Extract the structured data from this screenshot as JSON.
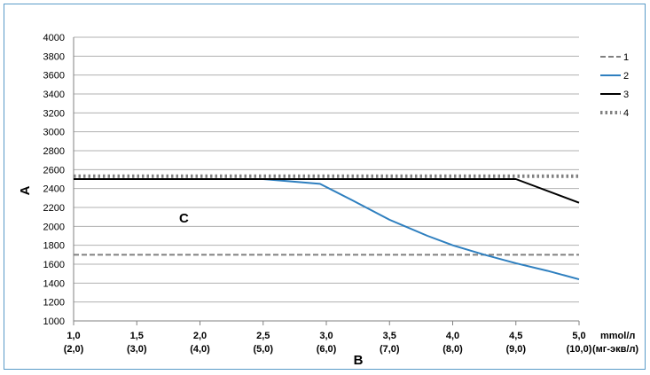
{
  "chart_data": {
    "type": "line",
    "ylabel": "A",
    "xlabel": "B",
    "annotation": "C",
    "x_unit_top": "mmol/л",
    "x_unit_bottom": "(мг-экв/л)",
    "ylim": [
      1000,
      4000
    ],
    "y_ticks": [
      "1000",
      "1200",
      "1400",
      "1600",
      "1800",
      "2000",
      "2200",
      "2400",
      "2600",
      "2800",
      "3000",
      "3200",
      "3400",
      "3600",
      "3800",
      "4000"
    ],
    "xlim": [
      1.0,
      5.0
    ],
    "x_ticks": [
      {
        "value": 1.0,
        "label": "1,0",
        "sub": "(2,0)"
      },
      {
        "value": 1.5,
        "label": "1,5",
        "sub": "(3,0)"
      },
      {
        "value": 2.0,
        "label": "2,0",
        "sub": "(4,0)"
      },
      {
        "value": 2.5,
        "label": "2,5",
        "sub": "(5,0)"
      },
      {
        "value": 3.0,
        "label": "3,0",
        "sub": "(6,0)"
      },
      {
        "value": 3.5,
        "label": "3,5",
        "sub": "(7,0)"
      },
      {
        "value": 4.0,
        "label": "4,0",
        "sub": "(8,0)"
      },
      {
        "value": 4.5,
        "label": "4,5",
        "sub": "(9,0)"
      },
      {
        "value": 5.0,
        "label": "5,0",
        "sub": "(10,0)"
      }
    ],
    "grid": true,
    "legend_position": "right",
    "series": [
      {
        "name": "1",
        "style": "dashed",
        "color": "#808080",
        "x": [
          1.0,
          5.0
        ],
        "y": [
          1700,
          1700
        ]
      },
      {
        "name": "2",
        "style": "solid",
        "color": "#2e7fbf",
        "x": [
          1.0,
          2.5,
          2.95,
          3.2,
          3.5,
          3.8,
          4.0,
          4.25,
          4.5,
          4.75,
          5.0
        ],
        "y": [
          2500,
          2500,
          2450,
          2280,
          2070,
          1900,
          1800,
          1700,
          1610,
          1530,
          1440
        ]
      },
      {
        "name": "3",
        "style": "solid",
        "color": "#000000",
        "x": [
          1.0,
          4.5,
          5.0
        ],
        "y": [
          2500,
          2500,
          2250
        ]
      },
      {
        "name": "4",
        "style": "dotted",
        "color": "#808080",
        "x": [
          1.0,
          5.0
        ],
        "y": [
          2530,
          2530
        ]
      }
    ]
  }
}
